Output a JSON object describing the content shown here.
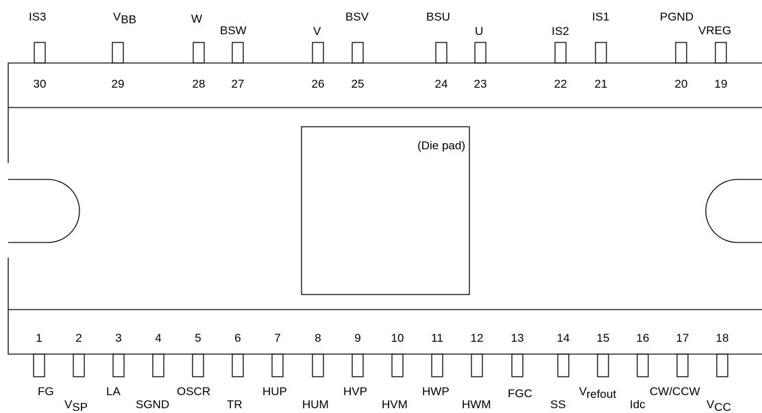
{
  "package": {
    "die_pad_label": "(Die pad)"
  },
  "top_pins": [
    {
      "number": "30",
      "name": "IS3"
    },
    {
      "number": "29",
      "name": "V",
      "sub": "BB"
    },
    {
      "number": "28",
      "name": "W"
    },
    {
      "number": "27",
      "name": "BSW"
    },
    {
      "number": "26",
      "name": "V"
    },
    {
      "number": "25",
      "name": "BSV"
    },
    {
      "number": "24",
      "name": "BSU"
    },
    {
      "number": "23",
      "name": "U"
    },
    {
      "number": "22",
      "name": "IS2"
    },
    {
      "number": "21",
      "name": "IS1"
    },
    {
      "number": "20",
      "name": "PGND"
    },
    {
      "number": "19",
      "name": "VREG"
    }
  ],
  "bottom_pins": [
    {
      "number": "1",
      "name": "FG"
    },
    {
      "number": "2",
      "name": "V",
      "sub": "SP"
    },
    {
      "number": "3",
      "name": "LA"
    },
    {
      "number": "4",
      "name": "SGND"
    },
    {
      "number": "5",
      "name": "OSCR"
    },
    {
      "number": "6",
      "name": "TR"
    },
    {
      "number": "7",
      "name": "HUP"
    },
    {
      "number": "8",
      "name": "HUM"
    },
    {
      "number": "9",
      "name": "HVP"
    },
    {
      "number": "10",
      "name": "HVM"
    },
    {
      "number": "11",
      "name": "HWP"
    },
    {
      "number": "12",
      "name": "HWM"
    },
    {
      "number": "13",
      "name": "FGC"
    },
    {
      "number": "14",
      "name": "SS"
    },
    {
      "number": "15",
      "name": "V",
      "sub": "refout"
    },
    {
      "number": "16",
      "name": "Idc"
    },
    {
      "number": "17",
      "name": "CW/CCW"
    },
    {
      "number": "18",
      "name": "V",
      "sub": "CC"
    }
  ]
}
